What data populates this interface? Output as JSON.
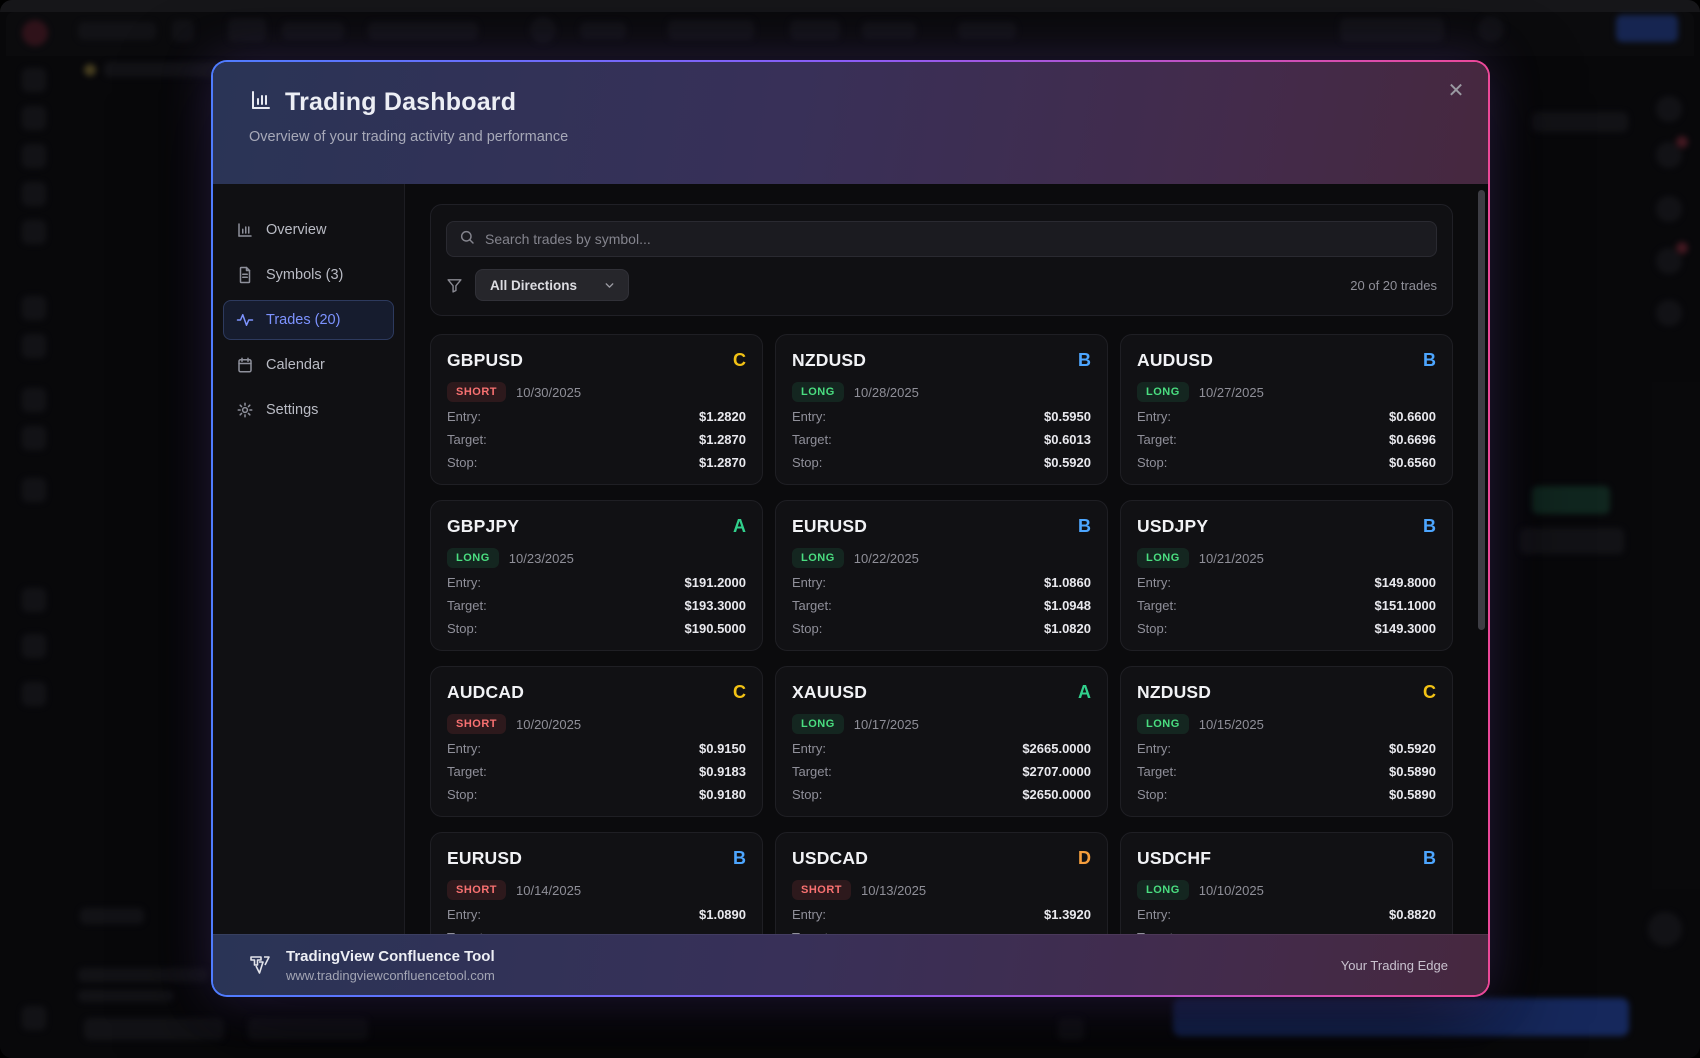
{
  "modal": {
    "title": "Trading Dashboard",
    "subtitle": "Overview of your trading activity and performance",
    "close_glyph": "✕"
  },
  "sidebar": {
    "active_index": 2,
    "items": [
      {
        "label": "Overview",
        "icon": "bar-chart-icon"
      },
      {
        "label": "Symbols (3)",
        "icon": "file-text-icon"
      },
      {
        "label": "Trades (20)",
        "icon": "activity-icon"
      },
      {
        "label": "Calendar",
        "icon": "calendar-icon"
      },
      {
        "label": "Settings",
        "icon": "gear-icon"
      }
    ]
  },
  "toolbar": {
    "search_placeholder": "Search trades by symbol...",
    "filter_value": "All Directions",
    "count_text": "20 of 20 trades"
  },
  "labels": {
    "entry": "Entry:",
    "target": "Target:",
    "stop": "Stop:"
  },
  "colors": {
    "grades": {
      "A": "#31d08c",
      "B": "#4da6ff",
      "C": "#f2c215",
      "D": "#f59e3d"
    },
    "accent_blue": "#7d93ff",
    "long_green": "#4ade80",
    "short_red": "#f87171"
  },
  "trades": [
    {
      "symbol": "GBPUSD",
      "grade": "C",
      "direction": "SHORT",
      "date": "10/30/2025",
      "entry": "$1.2820",
      "target": "$1.2870",
      "stop": "$1.2870"
    },
    {
      "symbol": "NZDUSD",
      "grade": "B",
      "direction": "LONG",
      "date": "10/28/2025",
      "entry": "$0.5950",
      "target": "$0.6013",
      "stop": "$0.5920"
    },
    {
      "symbol": "AUDUSD",
      "grade": "B",
      "direction": "LONG",
      "date": "10/27/2025",
      "entry": "$0.6600",
      "target": "$0.6696",
      "stop": "$0.6560"
    },
    {
      "symbol": "GBPJPY",
      "grade": "A",
      "direction": "LONG",
      "date": "10/23/2025",
      "entry": "$191.2000",
      "target": "$193.3000",
      "stop": "$190.5000"
    },
    {
      "symbol": "EURUSD",
      "grade": "B",
      "direction": "LONG",
      "date": "10/22/2025",
      "entry": "$1.0860",
      "target": "$1.0948",
      "stop": "$1.0820"
    },
    {
      "symbol": "USDJPY",
      "grade": "B",
      "direction": "LONG",
      "date": "10/21/2025",
      "entry": "$149.8000",
      "target": "$151.1000",
      "stop": "$149.3000"
    },
    {
      "symbol": "AUDCAD",
      "grade": "C",
      "direction": "SHORT",
      "date": "10/20/2025",
      "entry": "$0.9150",
      "target": "$0.9183",
      "stop": "$0.9180"
    },
    {
      "symbol": "XAUUSD",
      "grade": "A",
      "direction": "LONG",
      "date": "10/17/2025",
      "entry": "$2665.0000",
      "target": "$2707.0000",
      "stop": "$2650.0000"
    },
    {
      "symbol": "NZDUSD",
      "grade": "C",
      "direction": "LONG",
      "date": "10/15/2025",
      "entry": "$0.5920",
      "target": "$0.5890",
      "stop": "$0.5890"
    },
    {
      "symbol": "EURUSD",
      "grade": "B",
      "direction": "SHORT",
      "date": "10/14/2025",
      "entry": "$1.0890",
      "target": "",
      "stop": ""
    },
    {
      "symbol": "USDCAD",
      "grade": "D",
      "direction": "SHORT",
      "date": "10/13/2025",
      "entry": "$1.3920",
      "target": "",
      "stop": ""
    },
    {
      "symbol": "USDCHF",
      "grade": "B",
      "direction": "LONG",
      "date": "10/10/2025",
      "entry": "$0.8820",
      "target": "",
      "stop": ""
    }
  ],
  "footer": {
    "brand": "TradingView Confluence Tool",
    "url": "www.tradingviewconfluencetool.com",
    "tagline": "Your Trading Edge"
  }
}
